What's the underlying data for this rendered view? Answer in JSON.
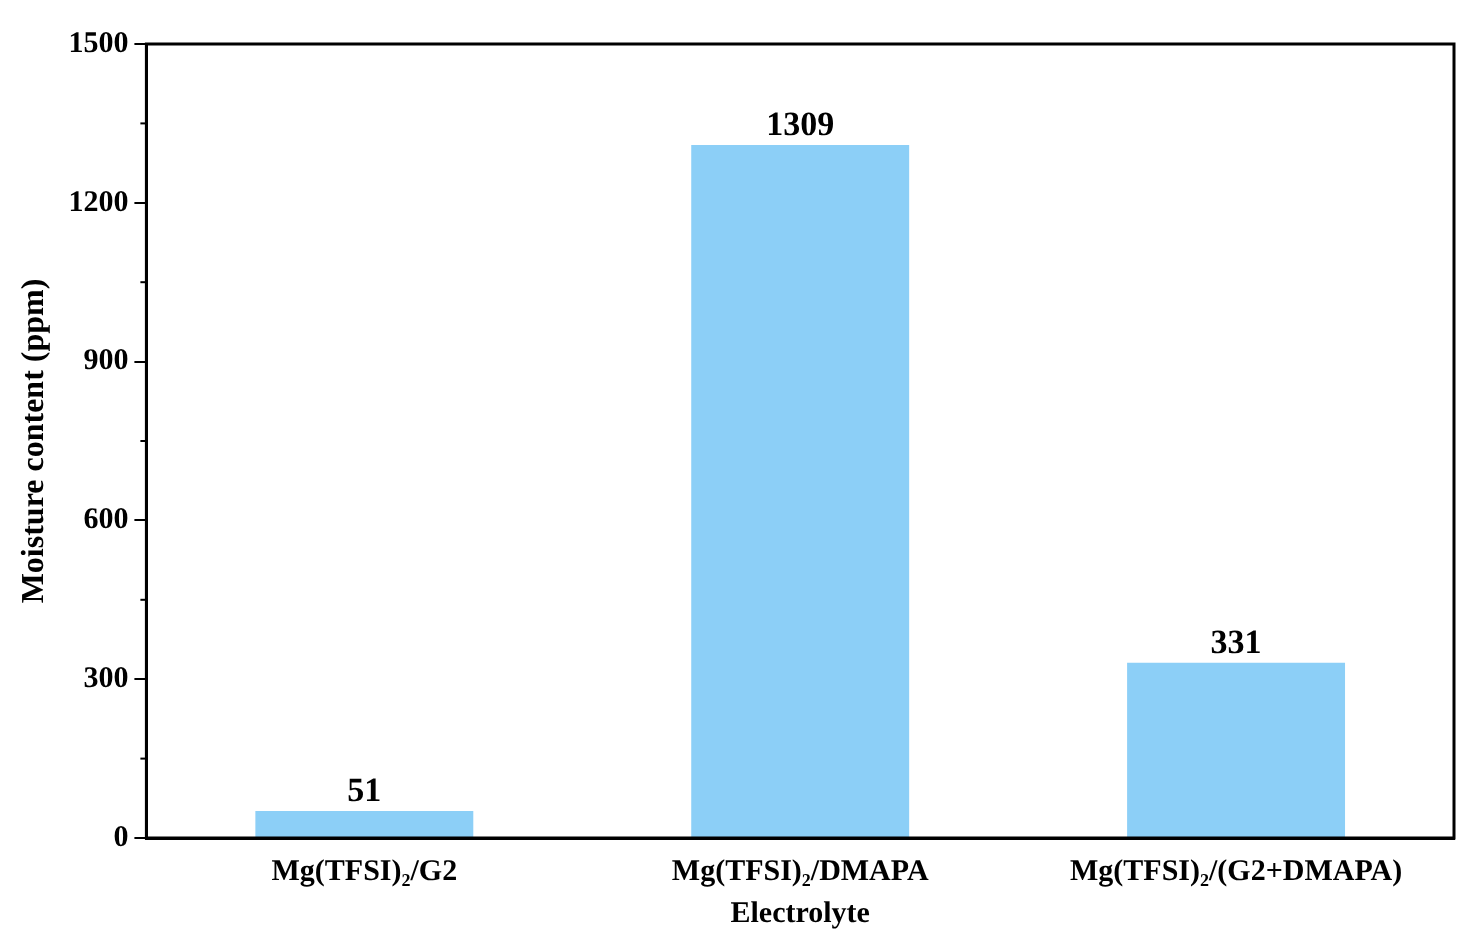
{
  "chart_data": {
    "type": "bar",
    "xlabel": "Electrolyte",
    "ylabel": "Moisture content (ppm)",
    "categories": [
      "Mg(TFSI)₂/G2",
      "Mg(TFSI)₂/DMAPA",
      "Mg(TFSI)₂/(G2+DMAPA)"
    ],
    "values": [
      51,
      1309,
      331
    ],
    "color": "#8ccff7",
    "ylim": [
      0,
      1500
    ],
    "yticks": [
      0,
      300,
      600,
      900,
      1200,
      1500
    ],
    "grid": false,
    "legend": false,
    "data_labels": true
  }
}
